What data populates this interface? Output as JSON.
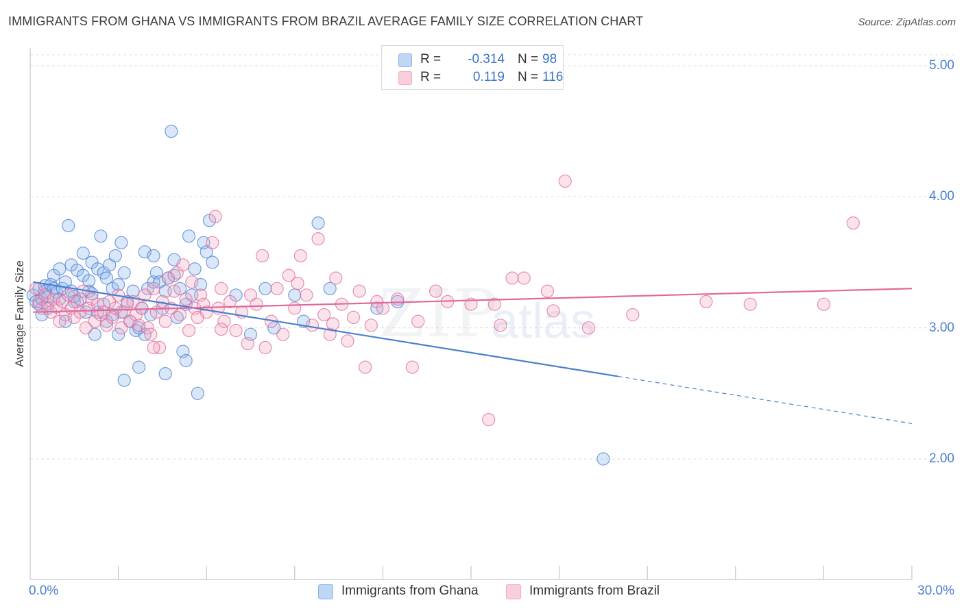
{
  "header": {
    "title": "IMMIGRANTS FROM GHANA VS IMMIGRANTS FROM BRAZIL AVERAGE FAMILY SIZE CORRELATION CHART",
    "source": "Source: ZipAtlas.com"
  },
  "watermark": {
    "zip": "ZIP",
    "atlas": "atlas"
  },
  "legend": {
    "rows": [
      {
        "r_label": "R =",
        "r_value": "-0.314",
        "n_label": "N =",
        "n_value": "98",
        "color": "#8ab4ec"
      },
      {
        "r_label": "R =",
        "r_value": "0.119",
        "n_label": "N =",
        "n_value": "116",
        "color": "#f4a8c2"
      }
    ]
  },
  "bottom_legend": {
    "items": [
      {
        "label": "Immigrants from Ghana",
        "color": "#8ab4ec"
      },
      {
        "label": "Immigrants from Brazil",
        "color": "#f4a8c2"
      }
    ]
  },
  "chart_data": {
    "type": "scatter",
    "title": "IMMIGRANTS FROM GHANA VS IMMIGRANTS FROM BRAZIL AVERAGE FAMILY SIZE CORRELATION CHART",
    "xlabel": "",
    "ylabel": "Average Family Size",
    "xlim": [
      0,
      30
    ],
    "ylim": [
      1.0,
      5.15
    ],
    "x_tick_labels": [
      "0.0%",
      "30.0%"
    ],
    "y_ticks": [
      2.0,
      3.0,
      4.0,
      5.0
    ],
    "y_tick_labels": [
      "2.00",
      "3.00",
      "4.00",
      "5.00"
    ],
    "grid": true,
    "legend_position": "top-center",
    "series": [
      {
        "name": "Immigrants from Ghana",
        "color": "#4a7fd1",
        "fill": "#8ab4ec",
        "trend": {
          "x0": 0.1,
          "y0": 3.35,
          "x1": 20.0,
          "y1": 2.63,
          "dash_to_x": 30.0,
          "dash_to_y": 2.27
        },
        "points": [
          [
            0.1,
            3.25
          ],
          [
            0.2,
            3.2
          ],
          [
            0.3,
            3.3
          ],
          [
            0.3,
            3.18
          ],
          [
            0.4,
            3.22
          ],
          [
            0.5,
            3.28
          ],
          [
            0.5,
            3.32
          ],
          [
            0.6,
            3.24
          ],
          [
            0.6,
            3.15
          ],
          [
            0.7,
            3.33
          ],
          [
            0.8,
            3.4
          ],
          [
            0.8,
            3.3
          ],
          [
            0.9,
            3.27
          ],
          [
            1.0,
            3.45
          ],
          [
            1.0,
            3.22
          ],
          [
            1.1,
            3.3
          ],
          [
            1.2,
            3.35
          ],
          [
            1.2,
            3.05
          ],
          [
            1.3,
            3.78
          ],
          [
            1.4,
            3.48
          ],
          [
            1.4,
            3.28
          ],
          [
            1.5,
            3.2
          ],
          [
            1.6,
            3.44
          ],
          [
            1.7,
            3.22
          ],
          [
            1.8,
            3.57
          ],
          [
            1.8,
            3.4
          ],
          [
            1.9,
            3.12
          ],
          [
            2.0,
            3.28
          ],
          [
            2.0,
            3.36
          ],
          [
            2.1,
            3.5
          ],
          [
            2.1,
            3.26
          ],
          [
            2.2,
            2.95
          ],
          [
            2.3,
            3.45
          ],
          [
            2.3,
            3.12
          ],
          [
            2.4,
            3.7
          ],
          [
            2.5,
            3.42
          ],
          [
            2.5,
            3.18
          ],
          [
            2.6,
            3.38
          ],
          [
            2.7,
            3.48
          ],
          [
            2.8,
            3.3
          ],
          [
            2.8,
            3.1
          ],
          [
            2.9,
            3.55
          ],
          [
            3.0,
            3.33
          ],
          [
            3.0,
            2.95
          ],
          [
            3.1,
            3.65
          ],
          [
            3.1,
            3.12
          ],
          [
            3.2,
            3.42
          ],
          [
            3.2,
            2.6
          ],
          [
            3.3,
            3.2
          ],
          [
            3.4,
            3.05
          ],
          [
            3.5,
            3.28
          ],
          [
            3.6,
            2.98
          ],
          [
            3.7,
            2.7
          ],
          [
            3.8,
            3.15
          ],
          [
            3.9,
            3.58
          ],
          [
            3.9,
            2.95
          ],
          [
            4.0,
            3.3
          ],
          [
            4.1,
            3.1
          ],
          [
            4.2,
            3.55
          ],
          [
            4.2,
            3.35
          ],
          [
            4.3,
            3.42
          ],
          [
            4.4,
            3.35
          ],
          [
            4.5,
            3.15
          ],
          [
            4.6,
            2.65
          ],
          [
            4.7,
            3.38
          ],
          [
            4.8,
            4.5
          ],
          [
            4.9,
            3.52
          ],
          [
            4.9,
            3.4
          ],
          [
            5.0,
            3.08
          ],
          [
            5.1,
            3.3
          ],
          [
            5.2,
            2.82
          ],
          [
            5.3,
            2.75
          ],
          [
            5.4,
            3.7
          ],
          [
            5.5,
            3.25
          ],
          [
            5.6,
            3.45
          ],
          [
            5.7,
            2.5
          ],
          [
            5.8,
            3.33
          ],
          [
            5.9,
            3.65
          ],
          [
            6.0,
            3.58
          ],
          [
            6.1,
            3.82
          ],
          [
            6.2,
            3.5
          ],
          [
            7.0,
            3.25
          ],
          [
            7.5,
            2.95
          ],
          [
            8.0,
            3.3
          ],
          [
            8.3,
            3.0
          ],
          [
            9.0,
            3.25
          ],
          [
            9.3,
            3.05
          ],
          [
            9.8,
            3.8
          ],
          [
            10.2,
            3.3
          ],
          [
            11.8,
            3.15
          ],
          [
            12.5,
            3.2
          ],
          [
            19.5,
            2.0
          ],
          [
            0.4,
            3.1
          ],
          [
            1.5,
            3.24
          ],
          [
            2.6,
            3.05
          ],
          [
            3.7,
            3.0
          ],
          [
            4.6,
            3.28
          ],
          [
            5.3,
            3.18
          ]
        ]
      },
      {
        "name": "Immigrants from Brazil",
        "color": "#e0699a",
        "fill": "#f4a8c2",
        "trend": {
          "x0": 0.1,
          "y0": 3.12,
          "x1": 30.0,
          "y1": 3.3
        },
        "points": [
          [
            0.2,
            3.3
          ],
          [
            0.3,
            3.2
          ],
          [
            0.4,
            3.15
          ],
          [
            0.5,
            3.25
          ],
          [
            0.6,
            3.18
          ],
          [
            0.7,
            3.12
          ],
          [
            0.8,
            3.22
          ],
          [
            0.9,
            3.16
          ],
          [
            1.0,
            3.05
          ],
          [
            1.1,
            3.2
          ],
          [
            1.2,
            3.1
          ],
          [
            1.3,
            3.25
          ],
          [
            1.4,
            3.15
          ],
          [
            1.5,
            3.08
          ],
          [
            1.6,
            3.2
          ],
          [
            1.7,
            3.12
          ],
          [
            1.8,
            3.28
          ],
          [
            1.9,
            3.0
          ],
          [
            2.0,
            3.15
          ],
          [
            2.1,
            3.22
          ],
          [
            2.2,
            3.05
          ],
          [
            2.3,
            3.18
          ],
          [
            2.4,
            3.1
          ],
          [
            2.5,
            3.12
          ],
          [
            2.6,
            3.02
          ],
          [
            2.7,
            3.2
          ],
          [
            2.8,
            3.08
          ],
          [
            2.9,
            3.15
          ],
          [
            3.0,
            3.25
          ],
          [
            3.1,
            3.0
          ],
          [
            3.2,
            3.12
          ],
          [
            3.3,
            3.18
          ],
          [
            3.4,
            3.05
          ],
          [
            3.5,
            3.2
          ],
          [
            3.6,
            3.1
          ],
          [
            3.7,
            3.02
          ],
          [
            3.8,
            3.15
          ],
          [
            3.9,
            3.25
          ],
          [
            4.0,
            3.0
          ],
          [
            4.1,
            2.95
          ],
          [
            4.2,
            3.3
          ],
          [
            4.3,
            3.12
          ],
          [
            4.4,
            2.85
          ],
          [
            4.5,
            3.2
          ],
          [
            4.6,
            3.05
          ],
          [
            4.7,
            3.38
          ],
          [
            4.8,
            3.15
          ],
          [
            4.9,
            3.28
          ],
          [
            5.0,
            3.42
          ],
          [
            5.1,
            3.1
          ],
          [
            5.2,
            3.48
          ],
          [
            5.3,
            3.22
          ],
          [
            5.4,
            2.98
          ],
          [
            5.5,
            3.35
          ],
          [
            5.6,
            3.15
          ],
          [
            5.7,
            3.08
          ],
          [
            5.8,
            3.25
          ],
          [
            5.9,
            3.18
          ],
          [
            6.0,
            3.12
          ],
          [
            6.2,
            3.65
          ],
          [
            6.3,
            3.85
          ],
          [
            6.4,
            3.15
          ],
          [
            6.5,
            3.3
          ],
          [
            6.6,
            3.05
          ],
          [
            6.8,
            3.2
          ],
          [
            7.0,
            2.98
          ],
          [
            7.2,
            3.12
          ],
          [
            7.4,
            2.88
          ],
          [
            7.5,
            3.25
          ],
          [
            7.7,
            3.18
          ],
          [
            7.9,
            3.55
          ],
          [
            8.0,
            2.85
          ],
          [
            8.2,
            3.05
          ],
          [
            8.4,
            3.3
          ],
          [
            8.6,
            2.95
          ],
          [
            8.8,
            3.4
          ],
          [
            9.0,
            3.15
          ],
          [
            9.2,
            3.55
          ],
          [
            9.4,
            3.25
          ],
          [
            9.6,
            3.02
          ],
          [
            9.8,
            3.68
          ],
          [
            10.0,
            3.1
          ],
          [
            10.2,
            2.95
          ],
          [
            10.4,
            3.38
          ],
          [
            10.6,
            3.18
          ],
          [
            10.8,
            2.9
          ],
          [
            11.0,
            3.08
          ],
          [
            11.2,
            3.28
          ],
          [
            11.4,
            2.7
          ],
          [
            11.6,
            3.02
          ],
          [
            11.8,
            3.2
          ],
          [
            12.0,
            3.15
          ],
          [
            12.5,
            3.22
          ],
          [
            13.0,
            2.7
          ],
          [
            13.2,
            3.05
          ],
          [
            13.8,
            3.28
          ],
          [
            14.2,
            3.2
          ],
          [
            15.0,
            3.18
          ],
          [
            15.8,
            3.18
          ],
          [
            16.0,
            3.02
          ],
          [
            16.4,
            3.38
          ],
          [
            16.8,
            3.38
          ],
          [
            17.6,
            3.28
          ],
          [
            17.8,
            3.13
          ],
          [
            18.2,
            4.12
          ],
          [
            19.0,
            3.0
          ],
          [
            20.5,
            3.1
          ],
          [
            23.0,
            3.2
          ],
          [
            24.5,
            3.18
          ],
          [
            27.0,
            3.18
          ],
          [
            28.0,
            3.8
          ],
          [
            15.6,
            2.3
          ],
          [
            4.2,
            2.85
          ],
          [
            6.5,
            2.99
          ],
          [
            9.1,
            3.34
          ],
          [
            10.3,
            3.03
          ]
        ]
      }
    ]
  }
}
